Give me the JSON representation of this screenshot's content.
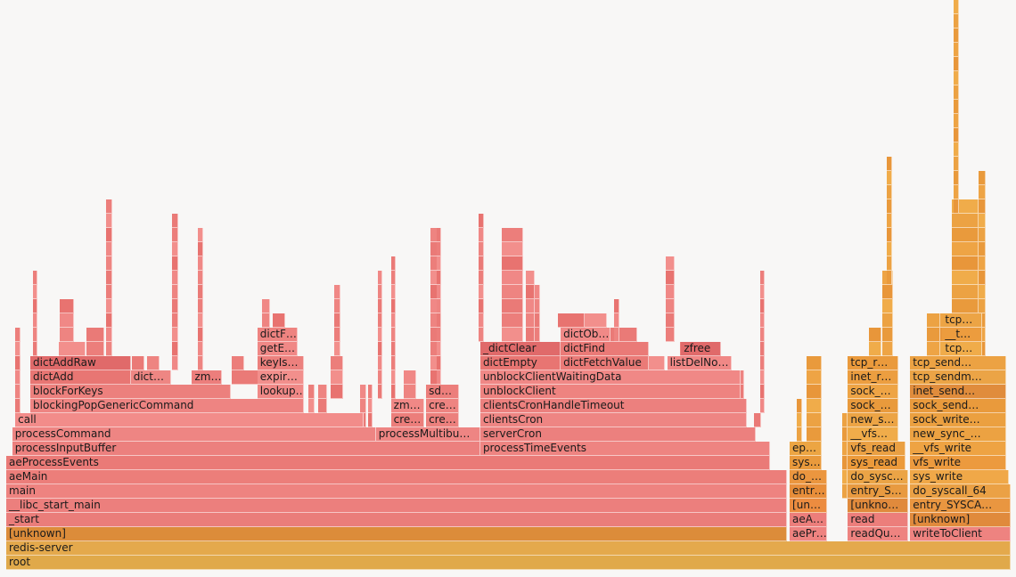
{
  "chart_data": {
    "type": "flamegraph",
    "title": "",
    "xlabel": "",
    "ylabel": "",
    "total_samples": 1000,
    "frames": [
      {
        "label": "root",
        "depth": 0,
        "start": 0,
        "width": 1000,
        "color": "#e0a94a"
      },
      {
        "label": "redis-server",
        "depth": 1,
        "start": 0,
        "width": 1000,
        "color": "#e4a94c"
      },
      {
        "label": "[unknown]",
        "depth": 2,
        "start": 0,
        "width": 777,
        "color": "#dc8c3a"
      },
      {
        "label": "_start",
        "depth": 3,
        "start": 0,
        "width": 777,
        "color": "#ea7d7a"
      },
      {
        "label": "__libc_start_main",
        "depth": 4,
        "start": 0,
        "width": 777,
        "color": "#ec7f7d"
      },
      {
        "label": "main",
        "depth": 5,
        "start": 0,
        "width": 777,
        "color": "#ee8380"
      },
      {
        "label": "aeMain",
        "depth": 6,
        "start": 0,
        "width": 777,
        "color": "#ec7e7a"
      },
      {
        "label": "aeProcessEvents",
        "depth": 7,
        "start": 0,
        "width": 760,
        "color": "#ea7a77"
      },
      {
        "label": "processInputBuffer",
        "depth": 8,
        "start": 6,
        "width": 466,
        "color": "#ec807e"
      },
      {
        "label": "processCommand",
        "depth": 9,
        "start": 6,
        "width": 362,
        "color": "#ee8583"
      },
      {
        "label": "call",
        "depth": 10,
        "start": 9,
        "width": 347,
        "color": "#f28c8a"
      },
      {
        "label": "blockingPopGenericCommand",
        "depth": 11,
        "start": 24,
        "width": 272,
        "color": "#ee8482"
      },
      {
        "label": "blockForKeys",
        "depth": 12,
        "start": 24,
        "width": 200,
        "color": "#ec807d"
      },
      {
        "label": "dictAdd",
        "depth": 13,
        "start": 24,
        "width": 100,
        "color": "#e87673"
      },
      {
        "label": "dictAddRaw",
        "depth": 14,
        "start": 24,
        "width": 100,
        "color": "#e06a6a"
      },
      {
        "label": "dict…",
        "depth": 13,
        "start": 124,
        "width": 40,
        "color": "#ee8683"
      },
      {
        "label": "zm…",
        "depth": 13,
        "start": 185,
        "width": 30,
        "color": "#ec7e7c"
      },
      {
        "label": "lookup…",
        "depth": 12,
        "start": 250,
        "width": 46,
        "color": "#f08886"
      },
      {
        "label": "expir…",
        "depth": 13,
        "start": 250,
        "width": 46,
        "color": "#f28f8c"
      },
      {
        "label": "keyIs…",
        "depth": 14,
        "start": 250,
        "width": 46,
        "color": "#ec807d"
      },
      {
        "label": "getE…",
        "depth": 15,
        "start": 250,
        "width": 40,
        "color": "#f08886"
      },
      {
        "label": "dictF…",
        "depth": 16,
        "start": 250,
        "width": 40,
        "color": "#ee8380"
      },
      {
        "label": "processMultibu…",
        "depth": 9,
        "start": 368,
        "width": 104,
        "color": "#ee8583"
      },
      {
        "label": "cre…",
        "depth": 10,
        "start": 383,
        "width": 33,
        "color": "#ec7e7b"
      },
      {
        "label": "zm…",
        "depth": 11,
        "start": 383,
        "width": 33,
        "color": "#f08886"
      },
      {
        "label": "cre…",
        "depth": 10,
        "start": 418,
        "width": 33,
        "color": "#ec807d"
      },
      {
        "label": "cre…",
        "depth": 11,
        "start": 418,
        "width": 33,
        "color": "#ee8481"
      },
      {
        "label": "sd…",
        "depth": 12,
        "start": 418,
        "width": 33,
        "color": "#ec7e7b"
      },
      {
        "label": "processTimeEvents",
        "depth": 8,
        "start": 472,
        "width": 288,
        "color": "#ee8481"
      },
      {
        "label": "serverCron",
        "depth": 9,
        "start": 472,
        "width": 274,
        "color": "#ec807e"
      },
      {
        "label": "clientsCron",
        "depth": 10,
        "start": 472,
        "width": 265,
        "color": "#ee8583"
      },
      {
        "label": "clientsCronHandleTimeout",
        "depth": 11,
        "start": 472,
        "width": 265,
        "color": "#ec807e"
      },
      {
        "label": "unblockClient",
        "depth": 12,
        "start": 472,
        "width": 259,
        "color": "#ee8380"
      },
      {
        "label": "unblockClientWaitingData",
        "depth": 13,
        "start": 472,
        "width": 259,
        "color": "#f08886"
      },
      {
        "label": "dictEmpty",
        "depth": 14,
        "start": 472,
        "width": 80,
        "color": "#e87572"
      },
      {
        "label": "_dictClear",
        "depth": 15,
        "start": 472,
        "width": 80,
        "color": "#e06a6a"
      },
      {
        "label": "dictFetchValue",
        "depth": 14,
        "start": 552,
        "width": 88,
        "color": "#ea7a77"
      },
      {
        "label": "dictFind",
        "depth": 15,
        "start": 552,
        "width": 88,
        "color": "#ea7a77"
      },
      {
        "label": "dictOb…",
        "depth": 16,
        "start": 552,
        "width": 50,
        "color": "#f08987"
      },
      {
        "label": "listDelNo…",
        "depth": 14,
        "start": 658,
        "width": 64,
        "color": "#f08886"
      },
      {
        "label": "zfree",
        "depth": 15,
        "start": 672,
        "width": 40,
        "color": "#e06a6a"
      },
      {
        "label": "aePr…",
        "depth": 2,
        "start": 780,
        "width": 37,
        "color": "#ee8380"
      },
      {
        "label": "aeA…",
        "depth": 3,
        "start": 780,
        "width": 37,
        "color": "#ec7e7b"
      },
      {
        "label": "[un…",
        "depth": 4,
        "start": 780,
        "width": 37,
        "color": "#ec8c40"
      },
      {
        "label": "entr…",
        "depth": 5,
        "start": 780,
        "width": 37,
        "color": "#e88e3a"
      },
      {
        "label": "do_…",
        "depth": 6,
        "start": 780,
        "width": 37,
        "color": "#eb963f"
      },
      {
        "label": "sys…",
        "depth": 7,
        "start": 780,
        "width": 32,
        "color": "#e99a3c"
      },
      {
        "label": "ep…",
        "depth": 8,
        "start": 780,
        "width": 32,
        "color": "#eca543"
      },
      {
        "label": "readQu…",
        "depth": 2,
        "start": 838,
        "width": 60,
        "color": "#ee8380"
      },
      {
        "label": "read",
        "depth": 3,
        "start": 838,
        "width": 60,
        "color": "#ec7e7b"
      },
      {
        "label": "[unkno…",
        "depth": 4,
        "start": 838,
        "width": 60,
        "color": "#e08a3c"
      },
      {
        "label": "entry_S…",
        "depth": 5,
        "start": 838,
        "width": 60,
        "color": "#e89a40"
      },
      {
        "label": "do_sysc…",
        "depth": 6,
        "start": 838,
        "width": 60,
        "color": "#eba446"
      },
      {
        "label": "sys_read",
        "depth": 7,
        "start": 838,
        "width": 57,
        "color": "#ec9a3a"
      },
      {
        "label": "vfs_read",
        "depth": 8,
        "start": 838,
        "width": 57,
        "color": "#eaa043"
      },
      {
        "label": "__vfs…",
        "depth": 9,
        "start": 838,
        "width": 50,
        "color": "#f0ac4a"
      },
      {
        "label": "new_s…",
        "depth": 10,
        "start": 838,
        "width": 50,
        "color": "#eca445"
      },
      {
        "label": "sock_…",
        "depth": 11,
        "start": 838,
        "width": 50,
        "color": "#e99a3c"
      },
      {
        "label": "sock_…",
        "depth": 12,
        "start": 838,
        "width": 50,
        "color": "#eea445"
      },
      {
        "label": "inet_r…",
        "depth": 13,
        "start": 838,
        "width": 50,
        "color": "#ec9e40"
      },
      {
        "label": "tcp_r…",
        "depth": 14,
        "start": 838,
        "width": 50,
        "color": "#ea9a3c"
      },
      {
        "label": "writeToClient",
        "depth": 2,
        "start": 900,
        "width": 100,
        "color": "#ee8380"
      },
      {
        "label": "[unknown]",
        "depth": 3,
        "start": 900,
        "width": 100,
        "color": "#e08a3c"
      },
      {
        "label": "entry_SYSCA…",
        "depth": 4,
        "start": 900,
        "width": 100,
        "color": "#e99640"
      },
      {
        "label": "do_syscall_64",
        "depth": 5,
        "start": 900,
        "width": 100,
        "color": "#eba145"
      },
      {
        "label": "sys_write",
        "depth": 6,
        "start": 900,
        "width": 98,
        "color": "#f0a848"
      },
      {
        "label": "vfs_write",
        "depth": 7,
        "start": 900,
        "width": 96,
        "color": "#ec9a3e"
      },
      {
        "label": "__vfs_write",
        "depth": 8,
        "start": 900,
        "width": 96,
        "color": "#eea343"
      },
      {
        "label": "new_sync_…",
        "depth": 9,
        "start": 900,
        "width": 96,
        "color": "#eca242"
      },
      {
        "label": "sock_write…",
        "depth": 10,
        "start": 900,
        "width": 96,
        "color": "#eba040"
      },
      {
        "label": "sock_send…",
        "depth": 11,
        "start": 900,
        "width": 96,
        "color": "#e99a3c"
      },
      {
        "label": "inet_send…",
        "depth": 12,
        "start": 900,
        "width": 96,
        "color": "#e08c3c"
      },
      {
        "label": "tcp_sendm…",
        "depth": 13,
        "start": 900,
        "width": 96,
        "color": "#eba446"
      },
      {
        "label": "tcp_send…",
        "depth": 14,
        "start": 900,
        "width": 96,
        "color": "#eca243"
      },
      {
        "label": "tcp…",
        "depth": 15,
        "start": 932,
        "width": 40,
        "color": "#f0ac4a"
      },
      {
        "label": "__t…",
        "depth": 16,
        "start": 932,
        "width": 40,
        "color": "#ec9c3e"
      },
      {
        "label": "tcp…",
        "depth": 17,
        "start": 932,
        "width": 40,
        "color": "#eca445"
      }
    ]
  }
}
